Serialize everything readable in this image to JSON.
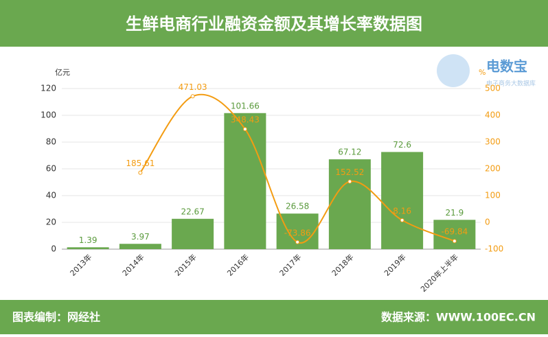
{
  "header": {
    "title": "生鲜电商行业融资金额及其增长率数据图"
  },
  "footer": {
    "left": "图表编制：网经社",
    "right": "数据来源：WWW.100EC.CN"
  },
  "logo": {
    "name": "电数宝",
    "sub": "电子商务大数据库"
  },
  "chart_data": {
    "type": "bar",
    "categories": [
      "2013年",
      "2014年",
      "2015年",
      "2016年",
      "2017年",
      "2018年",
      "2019年",
      "2020年上半年"
    ],
    "y_label": "亿元",
    "y2_label": "%",
    "ylim": [
      0,
      120
    ],
    "yticks": [
      0,
      20,
      40,
      60,
      80,
      100,
      120
    ],
    "y2lim": [
      -100,
      500
    ],
    "y2ticks": [
      -100,
      0,
      100,
      200,
      300,
      400,
      500
    ],
    "grid": true,
    "series": [
      {
        "type": "bar",
        "color": "#6aa84f",
        "values": [
          1.39,
          3.97,
          22.67,
          101.66,
          26.58,
          67.12,
          72.6,
          21.9
        ]
      },
      {
        "type": "line",
        "axis": "y2",
        "color": "#f39c12",
        "values": [
          null,
          185.61,
          471.03,
          348.43,
          -73.86,
          152.52,
          8.16,
          -69.84
        ]
      }
    ]
  }
}
